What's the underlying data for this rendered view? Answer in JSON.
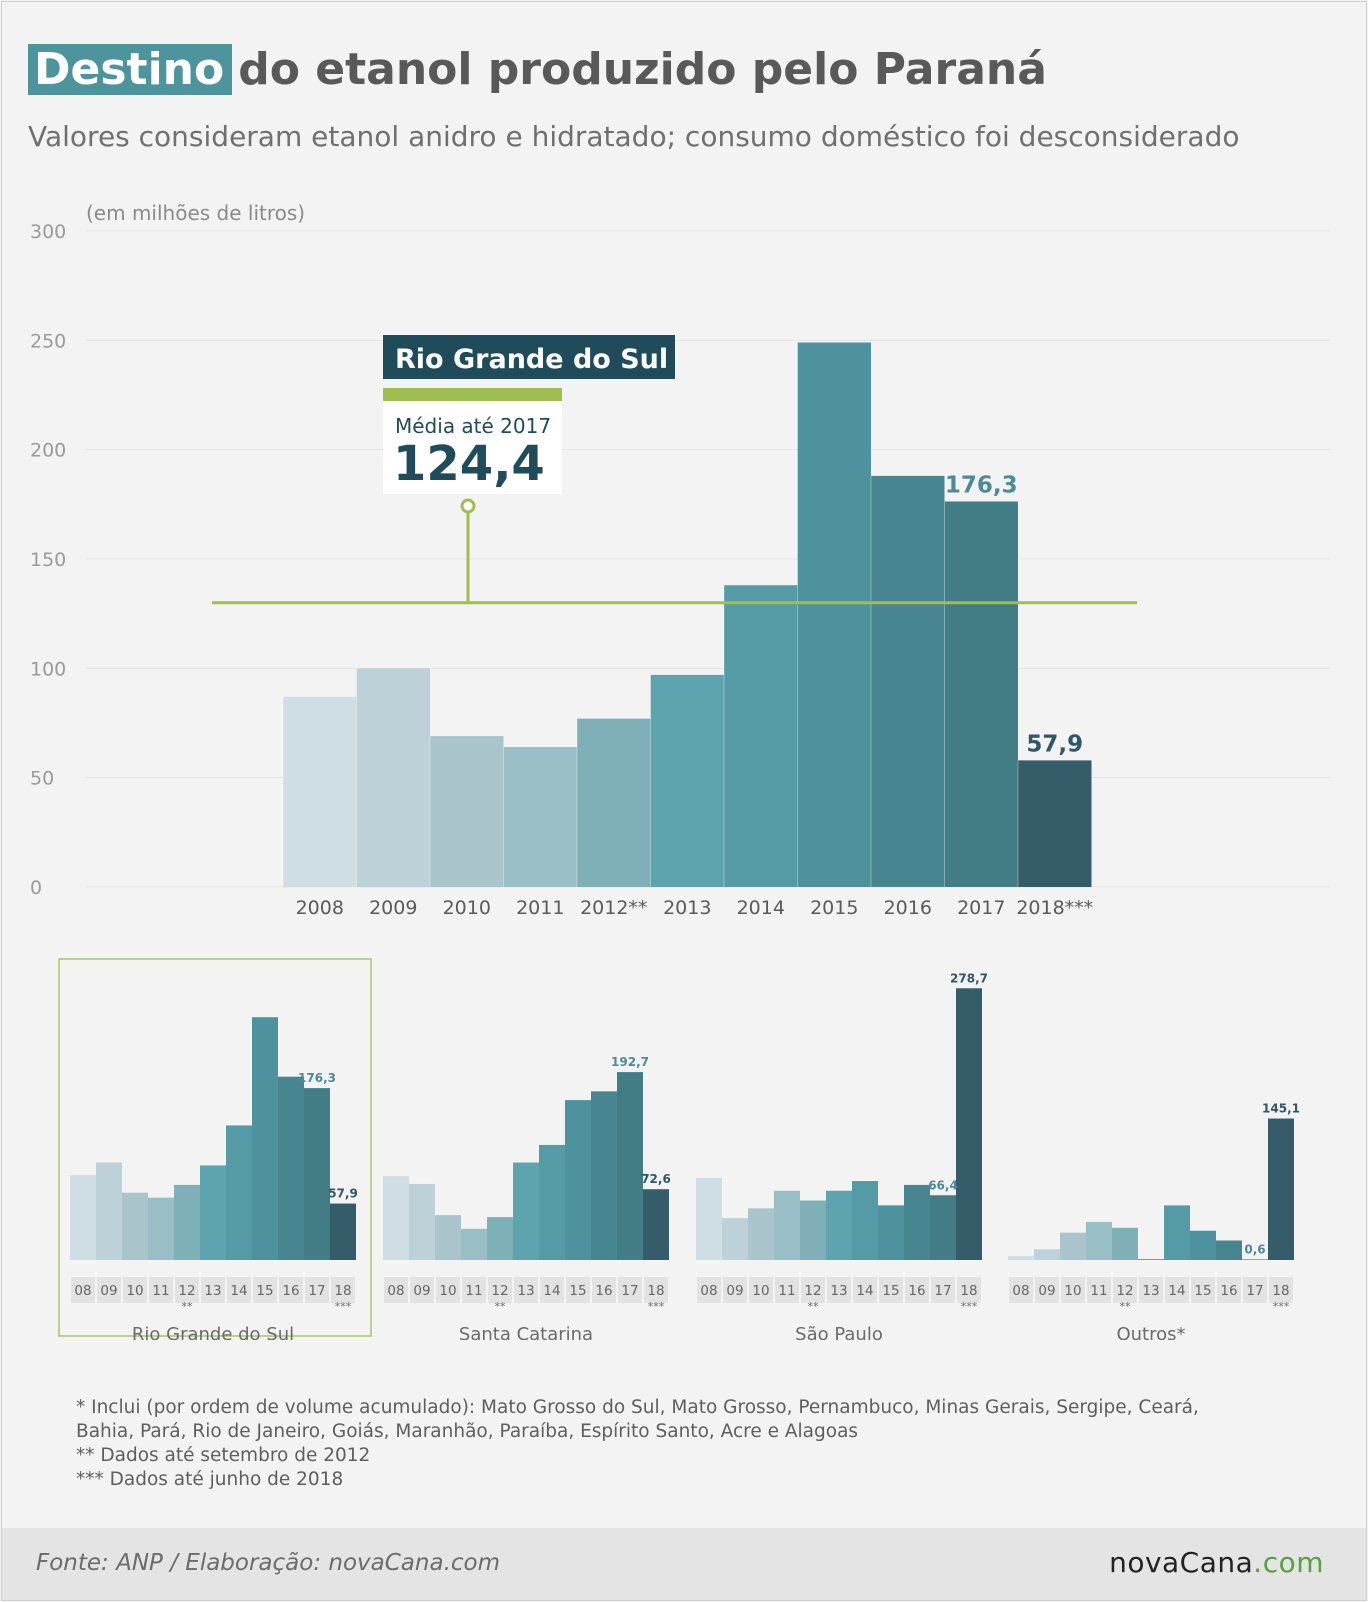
{
  "title_highlight": "Destino",
  "title_rest": "do etanol produzido pelo Paraná",
  "subtitle": "Valores consideram etanol anidro e hidratado; consumo doméstico foi desconsiderado",
  "chart_data": [
    {
      "type": "bar",
      "title": "Rio Grande do Sul",
      "ylabel": "(em milhões de litros)",
      "ylim": [
        0,
        300
      ],
      "yticks": [
        "0",
        "50",
        "100",
        "150",
        "200",
        "250",
        "300"
      ],
      "categories": [
        "2008",
        "2009",
        "2010",
        "2011",
        "2012**",
        "2013",
        "2014",
        "2015",
        "2016",
        "2017",
        "2018***"
      ],
      "values": [
        87,
        100,
        69,
        64,
        77,
        97,
        138,
        249,
        188,
        176.3,
        57.9
      ],
      "data_labels": {
        "9": "176,3",
        "10": "57,9"
      },
      "reference_line": {
        "value": 124.4,
        "label": "Média até 2017",
        "value_label": "124,4"
      },
      "colors": [
        "#cfdee2",
        "#bdd2d8",
        "#a9c5cb",
        "#9abec6",
        "#7fb0b8",
        "#5ea4ae",
        "#559ba6",
        "#4d929c",
        "#478690",
        "#427c85",
        "#355c69"
      ],
      "reference_color": "#9ebf4f"
    },
    {
      "type": "bar",
      "title": "Rio Grande do Sul",
      "categories": [
        "08",
        "09",
        "10",
        "11",
        "12",
        "13",
        "14",
        "15",
        "16",
        "17",
        "18"
      ],
      "category_marks": {
        "4": "**",
        "10": "***"
      },
      "values": [
        87,
        100,
        69,
        64,
        77,
        97,
        138,
        249,
        188,
        176.3,
        57.9
      ],
      "data_labels": {
        "9": "176,3",
        "10": "57,9"
      }
    },
    {
      "type": "bar",
      "title": "Santa Catarina",
      "categories": [
        "08",
        "09",
        "10",
        "11",
        "12",
        "13",
        "14",
        "15",
        "16",
        "17",
        "18"
      ],
      "category_marks": {
        "4": "**",
        "10": "***"
      },
      "values": [
        86,
        78,
        46,
        32,
        44,
        100,
        118,
        164,
        173,
        192.7,
        72.6
      ],
      "data_labels": {
        "9": "192,7",
        "10": "72,6"
      }
    },
    {
      "type": "bar",
      "title": "São Paulo",
      "categories": [
        "08",
        "09",
        "10",
        "11",
        "12",
        "13",
        "14",
        "15",
        "16",
        "17",
        "18"
      ],
      "category_marks": {
        "4": "**",
        "10": "***"
      },
      "values": [
        84,
        43,
        53,
        71,
        61,
        71,
        81,
        56,
        77,
        66.4,
        278.7
      ],
      "data_labels": {
        "9": "66,4",
        "10": "278,7"
      }
    },
    {
      "type": "bar",
      "title": "Outros*",
      "categories": [
        "08",
        "09",
        "10",
        "11",
        "12",
        "13",
        "14",
        "15",
        "16",
        "17",
        "18"
      ],
      "category_marks": {
        "4": "**",
        "10": "***"
      },
      "values": [
        4,
        11,
        28,
        39,
        33,
        1,
        56,
        30,
        20,
        0.6,
        145.1
      ],
      "data_labels": {
        "9": "0,6",
        "10": "145,1"
      }
    }
  ],
  "footnotes": [
    "* Inclui (por ordem de volume acumulado): Mato Grosso do Sul, Mato Grosso, Pernambuco, Minas Gerais, Sergipe, Ceará,",
    "Bahia, Pará, Rio de Janeiro, Goiás, Maranhão, Paraíba, Espírito Santo, Acre e Alagoas",
    "** Dados até setembro de 2012",
    "*** Dados até junho de 2018"
  ],
  "source": "Fonte: ANP  / Elaboração: novaCana.com",
  "logo_main": "novaCana",
  "logo_suffix": ".com"
}
